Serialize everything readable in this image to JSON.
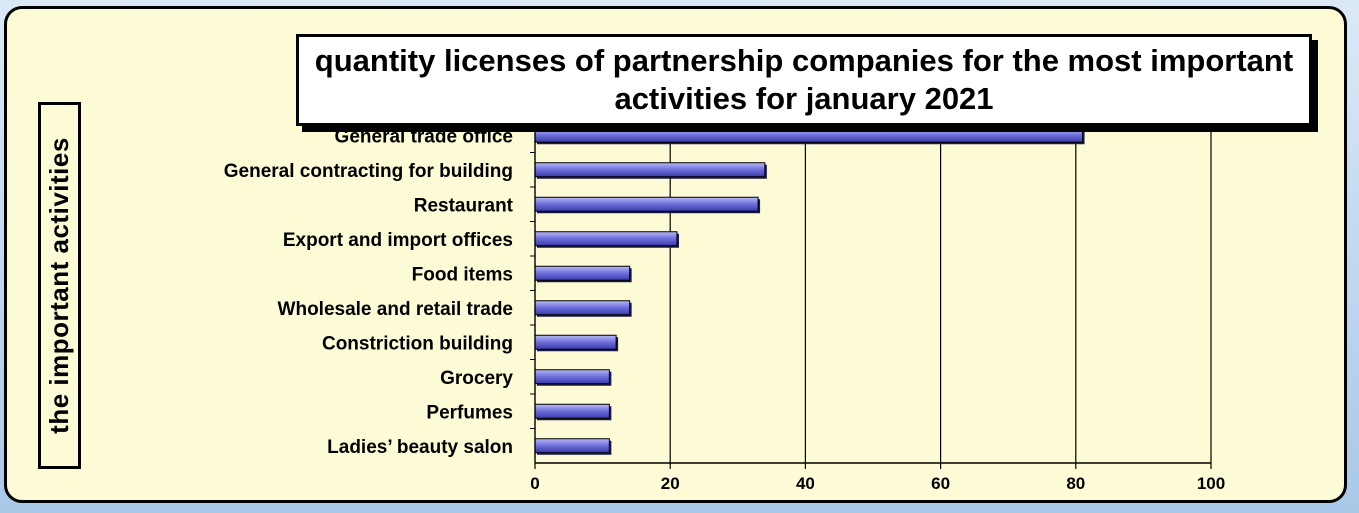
{
  "chart_data": {
    "type": "bar",
    "orientation": "horizontal",
    "title": "quantity licenses of partnership companies for the most important activities for january 2021",
    "xlabel": "",
    "ylabel": "the important activities",
    "categories": [
      "General trade office",
      "General contracting for building",
      "Restaurant",
      "Export and import offices",
      "Food items",
      "Wholesale and retail trade",
      "Constriction building",
      "Grocery",
      "Perfumes",
      "Ladies’ beauty salon"
    ],
    "values": [
      81,
      34,
      33,
      21,
      14,
      14,
      12,
      11,
      11,
      11
    ],
    "xlim": [
      0,
      100
    ],
    "xticks": [
      0,
      20,
      40,
      60,
      80,
      100
    ],
    "grid": true,
    "legend": "none",
    "bar_color": "#6b6bdc",
    "background_color": "#fdfbd5"
  }
}
